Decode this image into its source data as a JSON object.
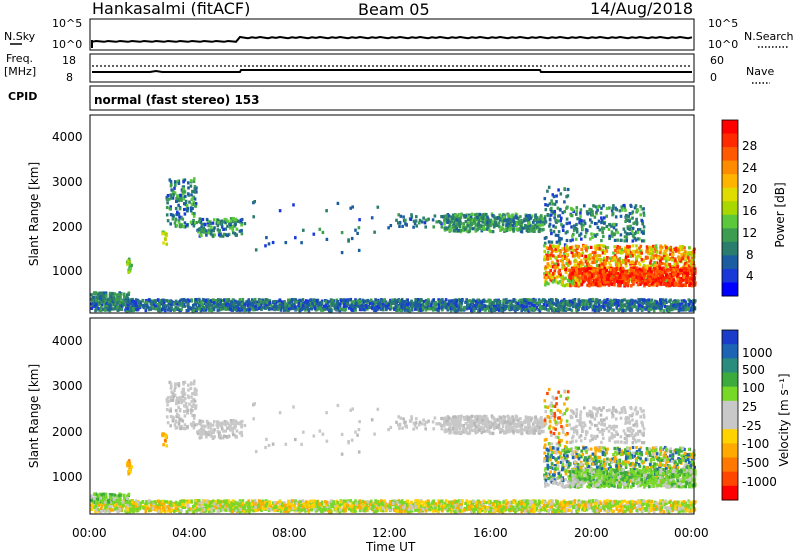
{
  "header": {
    "station": "Hankasalmi (fitACF)",
    "beam": "Beam 05",
    "date": "14/Aug/2018"
  },
  "strip_panels": {
    "nsky_label": "N.Sky",
    "nsky_ticks": [
      "10^5",
      "10^0"
    ],
    "nsearch_label": "N.Search",
    "nsearch_ticks": [
      "10^5",
      "10^0"
    ],
    "freq_label_1": "Freq.",
    "freq_label_2": "[MHz]",
    "freq_ticks": [
      "18",
      "8"
    ],
    "nave_label": "Nave",
    "nave_ticks": [
      "60",
      "0"
    ],
    "cpid_label": "CPID",
    "cpid_text": "normal (fast stereo) 153"
  },
  "colorbars": {
    "power": {
      "label": "Power [dB]",
      "ticks": [
        "28",
        "24",
        "20",
        "16",
        "12",
        "8",
        "4"
      ],
      "colors": [
        "#ff0000",
        "#ff2a00",
        "#ff5a00",
        "#ff8c00",
        "#ffb400",
        "#e0dc00",
        "#a8d800",
        "#5cc83c",
        "#3c9c50",
        "#2a7c6c",
        "#1c5ca0",
        "#1838d8",
        "#0000ff"
      ]
    },
    "velocity": {
      "label": "Velocity [m s⁻¹]",
      "ticks": [
        "1000",
        "500",
        "100",
        "25",
        "-25",
        "-100",
        "-500",
        "-1000"
      ],
      "colors": [
        "#1a3cc8",
        "#1e64b4",
        "#2a8c7c",
        "#3caa3c",
        "#78d828",
        "#c8c8c8",
        "#c8c8c8",
        "#ffd200",
        "#ffaa00",
        "#ff7800",
        "#ff4600",
        "#ff0000"
      ]
    }
  },
  "chart_data": [
    {
      "type": "heatmap",
      "name": "power",
      "ylabel": "Slant Range [km]",
      "yticks": [
        "4000",
        "3000",
        "2000",
        "1000"
      ],
      "ylim": [
        200,
        4600
      ],
      "xlim": [
        "00:00",
        "24:00"
      ],
      "xticks": [
        "00:00",
        "04:00",
        "08:00",
        "12:00",
        "16:00",
        "20:00",
        "00:00"
      ],
      "clim": [
        0,
        32
      ]
    },
    {
      "type": "heatmap",
      "name": "velocity",
      "ylabel": "Slant Range [km]",
      "yticks": [
        "4000",
        "3000",
        "2000",
        "1000"
      ],
      "ylim": [
        200,
        4600
      ],
      "xlim": [
        "00:00",
        "24:00"
      ],
      "xticks": [
        "00:00",
        "04:00",
        "08:00",
        "12:00",
        "16:00",
        "20:00",
        "00:00"
      ],
      "xlabel": "Time UT",
      "clim": [
        -1000,
        1000
      ]
    }
  ]
}
